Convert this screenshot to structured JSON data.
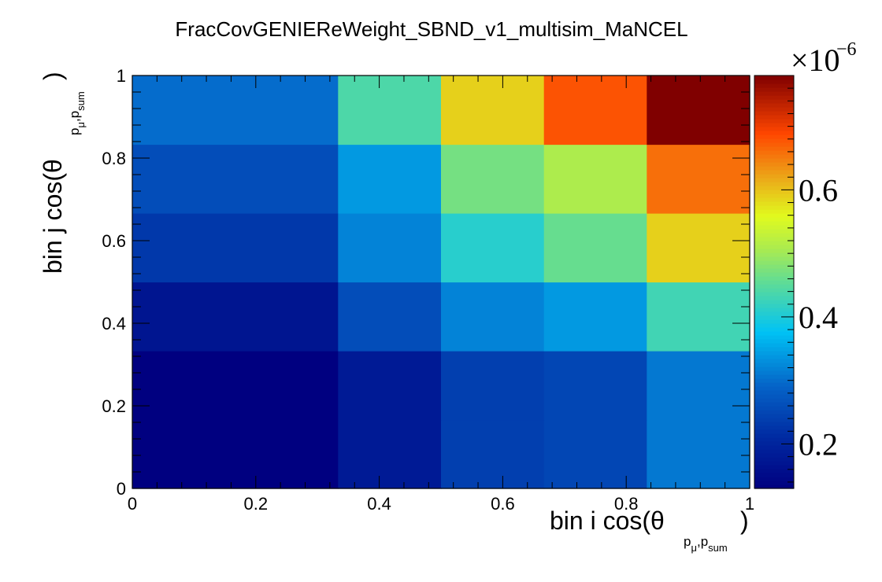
{
  "chart_data": {
    "type": "heatmap",
    "title": "FracCovGENIEReWeight_SBND_v1_multisim_MaNCEL",
    "xlabel": "bin i cos(θ",
    "xlabel_sub": "p⃗_μ,p⃗_sum",
    "xlabel_close": ")",
    "ylabel": "bin j cos(θ",
    "ylabel_sub": "p⃗_μ,p⃗_sum",
    "ylabel_close": ")",
    "x_edges": [
      0,
      0.3333,
      0.5,
      0.6667,
      0.8333,
      1.0
    ],
    "y_edges": [
      0,
      0.1667,
      0.3333,
      0.5,
      0.6667,
      0.8333,
      1.0
    ],
    "xlim": [
      0,
      1
    ],
    "ylim": [
      0,
      1
    ],
    "x_ticks": [
      "0",
      "0.2",
      "0.4",
      "0.6",
      "0.8",
      "1"
    ],
    "y_ticks": [
      "0",
      "0.2",
      "0.4",
      "0.6",
      "0.8",
      "1"
    ],
    "values_e6": [
      [
        0.13,
        0.18,
        0.24,
        0.25,
        0.31
      ],
      [
        0.13,
        0.18,
        0.24,
        0.25,
        0.31
      ],
      [
        0.17,
        0.26,
        0.32,
        0.34,
        0.43
      ],
      [
        0.23,
        0.32,
        0.41,
        0.46,
        0.59
      ],
      [
        0.26,
        0.34,
        0.47,
        0.51,
        0.66
      ],
      [
        0.3,
        0.44,
        0.59,
        0.68,
        0.78
      ]
    ],
    "zlim_e6": [
      0.13,
      0.78
    ],
    "z_multiplier": "×10",
    "z_exponent": "−6",
    "z_ticks": [
      {
        "label": "0.2",
        "value": 0.2
      },
      {
        "label": "0.4",
        "value": 0.4
      },
      {
        "label": "0.6",
        "value": 0.6
      }
    ],
    "colormap": "rainbow (ROOT kRainBow)"
  }
}
